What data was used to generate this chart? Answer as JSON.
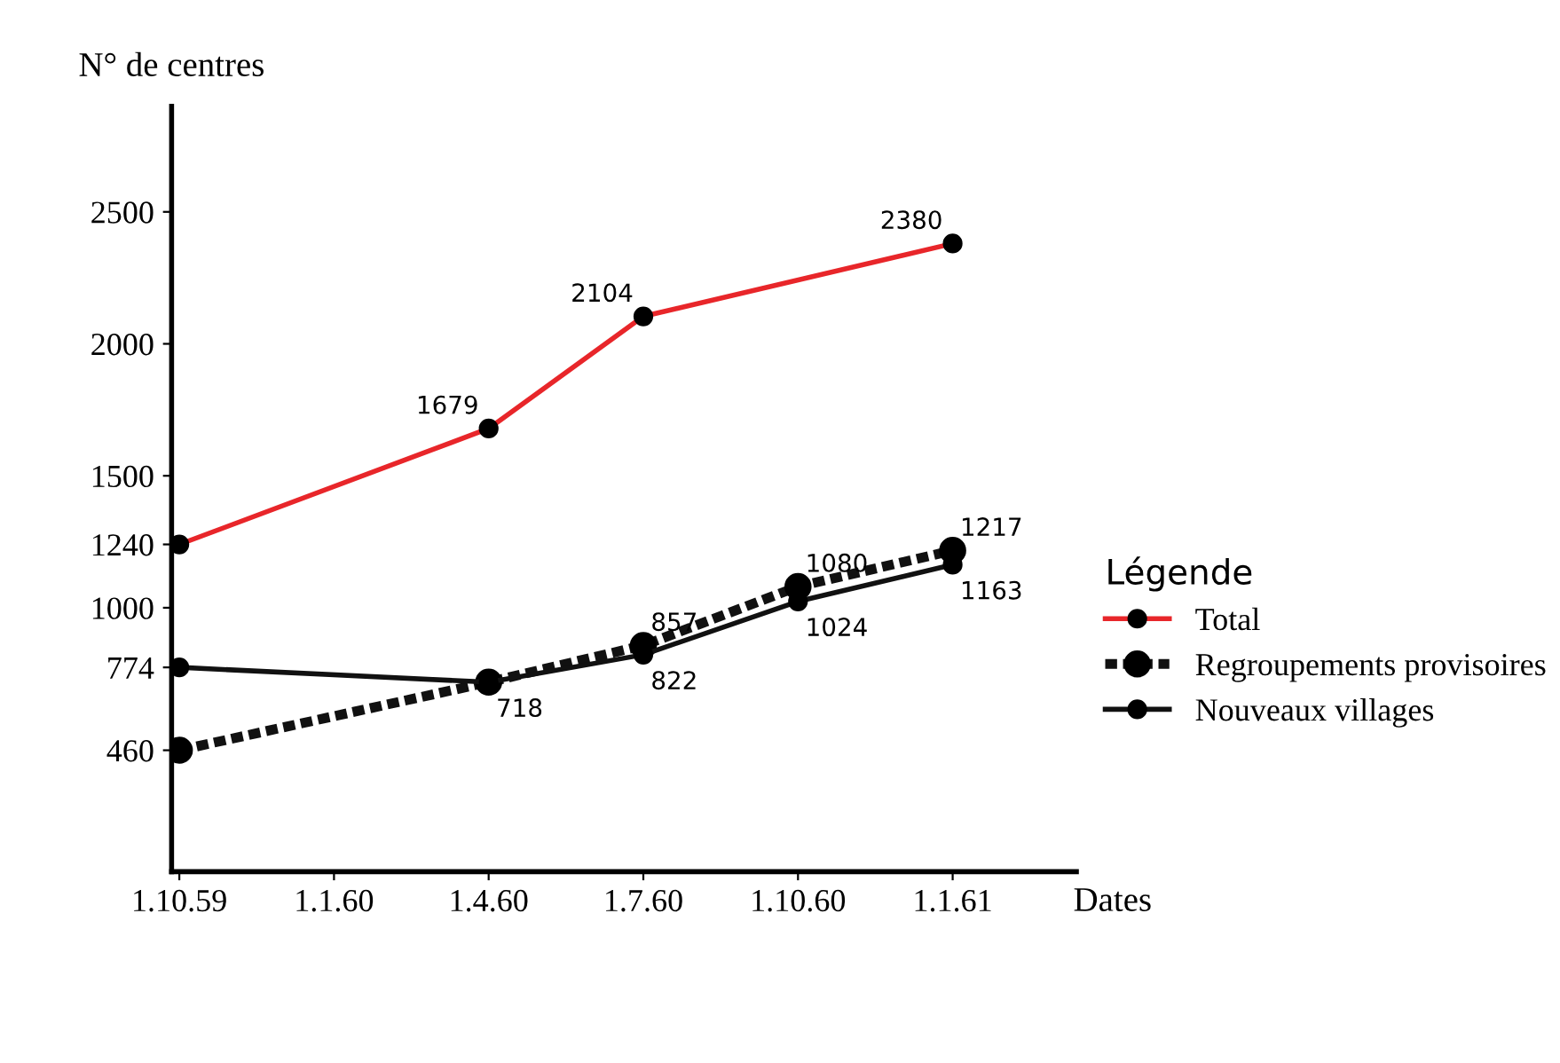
{
  "chart_data": {
    "type": "line",
    "xlabel": "Dates",
    "ylabel": "N° de centres",
    "legend_title": "Légende",
    "legend": "right",
    "categories": [
      "1.10.59",
      "1.1.60",
      "1.4.60",
      "1.7.60",
      "1.10.60",
      "1.1.61"
    ],
    "ylim": [
      0,
      2900
    ],
    "yticks": [
      460,
      774,
      1000,
      1240,
      1500,
      2000,
      2500
    ],
    "grid": false,
    "marker": "circle",
    "series": [
      {
        "name": "Total",
        "color": "#e8262a",
        "line_style": "solid",
        "values": [
          1240,
          null,
          1679,
          2104,
          null,
          2380
        ],
        "value_labels": [
          null,
          null,
          "1679",
          "2104",
          null,
          "2380"
        ]
      },
      {
        "name": "Regroupements provisoires",
        "color": "#111111",
        "line_style": "dashed",
        "values": [
          460,
          null,
          718,
          857,
          1080,
          1217
        ],
        "value_labels": [
          null,
          null,
          null,
          "857",
          "1080",
          "1217"
        ]
      },
      {
        "name": "Nouveaux villages",
        "color": "#111111",
        "line_style": "solid",
        "values": [
          774,
          null,
          718,
          822,
          1024,
          1163
        ],
        "value_labels": [
          null,
          null,
          "718",
          "822",
          "1024",
          "1163"
        ]
      }
    ]
  }
}
